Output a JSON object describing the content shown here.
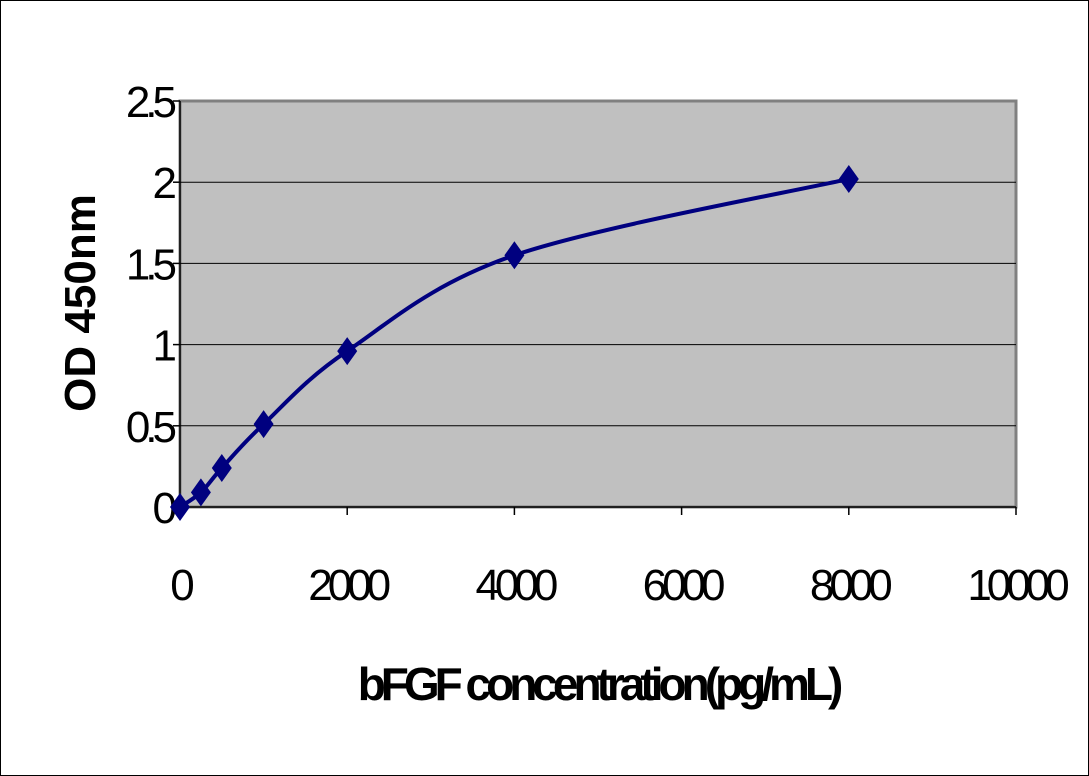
{
  "chart_data": {
    "type": "scatter",
    "title": "",
    "xlabel": "bFGF concentration(pg/mL)",
    "ylabel": "OD 450nm",
    "xlim": [
      0,
      10000
    ],
    "ylim": [
      0,
      2.5
    ],
    "x_ticks": [
      0,
      2000,
      4000,
      6000,
      8000,
      10000
    ],
    "x_tick_labels": [
      "0",
      "2000",
      "4000",
      "6000",
      "8000",
      "10000"
    ],
    "y_ticks": [
      0,
      0.5,
      1,
      1.5,
      2,
      2.5
    ],
    "y_tick_labels": [
      "0",
      "0.5",
      "1",
      "1.5",
      "2",
      "2.5"
    ],
    "grid": "horizontal",
    "plot_background": "#c0c0c0",
    "series": [
      {
        "marker": "diamond",
        "line": "smooth",
        "color": "#00007f",
        "x": [
          0,
          250,
          500,
          1000,
          2000,
          4000,
          8000
        ],
        "y": [
          0.0,
          0.09,
          0.24,
          0.51,
          0.96,
          1.55,
          2.02
        ]
      }
    ]
  }
}
